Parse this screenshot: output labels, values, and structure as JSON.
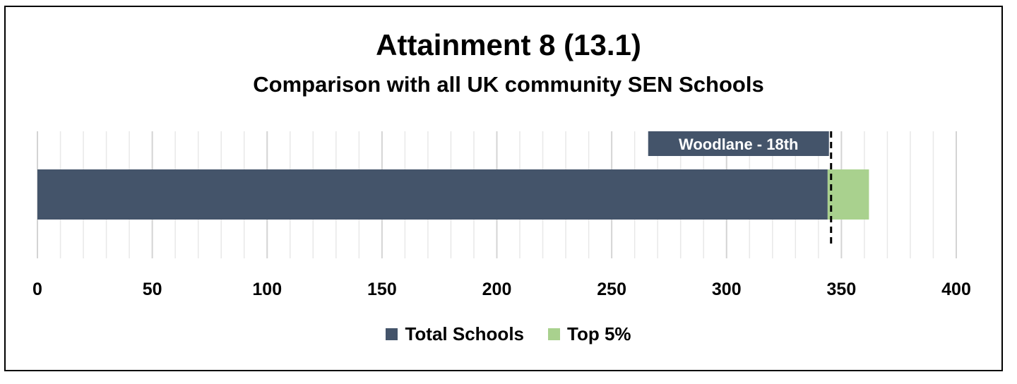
{
  "chart_data": {
    "type": "bar",
    "orientation": "horizontal",
    "stacked": true,
    "title": "Attainment 8 (13.1)",
    "subtitle": "Comparison with all UK community SEN Schools",
    "series": [
      {
        "name": "Total Schools",
        "values": [
          344
        ],
        "color": "#44546a"
      },
      {
        "name": "Top 5%",
        "values": [
          18
        ],
        "color": "#a9d18e"
      }
    ],
    "xlim": [
      0,
      400
    ],
    "x_ticks": [
      0,
      50,
      100,
      150,
      200,
      250,
      300,
      350,
      400
    ],
    "x_tick_labels": [
      "0",
      "50",
      "100",
      "150",
      "200",
      "250",
      "300",
      "350",
      "400"
    ],
    "grid": true,
    "legend_position": "bottom",
    "annotation": {
      "text": "Woodlane - 18th",
      "marker_value": 345.5,
      "color": "#44546a"
    }
  }
}
